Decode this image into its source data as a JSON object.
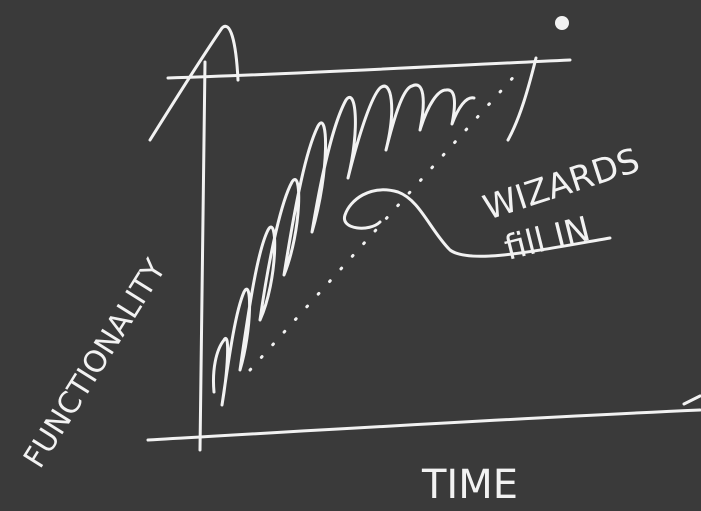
{
  "diagram": {
    "background_color": "#3a3a3a",
    "ink_color": "#f2f2f2",
    "axis_labels": {
      "y": "FUNCTIONALITY",
      "x": "TIME"
    },
    "annotation": {
      "line1": "WIZARDS",
      "line2": "fill IN"
    }
  }
}
